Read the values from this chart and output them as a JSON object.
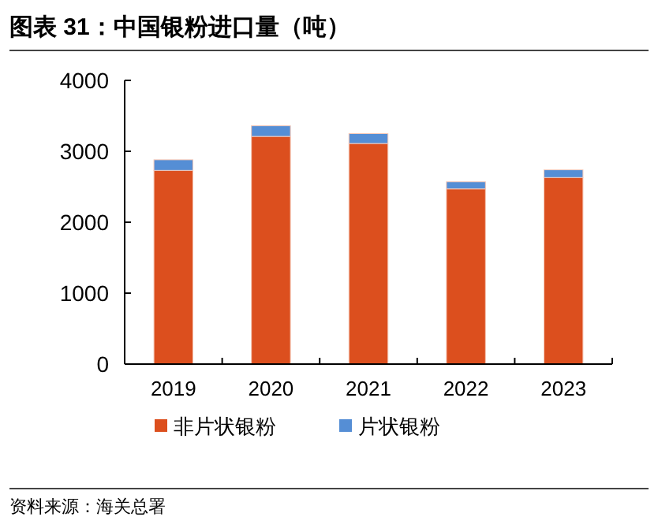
{
  "chart_data": {
    "type": "bar",
    "title": "图表 31：中国银粉进口量（吨）",
    "stacked": true,
    "categories": [
      "2019",
      "2020",
      "2021",
      "2022",
      "2023"
    ],
    "series": [
      {
        "name": "非片状银粉",
        "color": "#dc4f1e",
        "values": [
          2730,
          3210,
          3110,
          2470,
          2630
        ]
      },
      {
        "name": "片状银粉",
        "color": "#558ed5",
        "values": [
          150,
          150,
          140,
          100,
          110
        ]
      }
    ],
    "ylim": [
      0,
      4000
    ],
    "yticks": [
      0,
      1000,
      2000,
      3000,
      4000
    ],
    "grid": false,
    "legend": "bottom",
    "annotations": [
      "资料来源：海关总署"
    ]
  }
}
